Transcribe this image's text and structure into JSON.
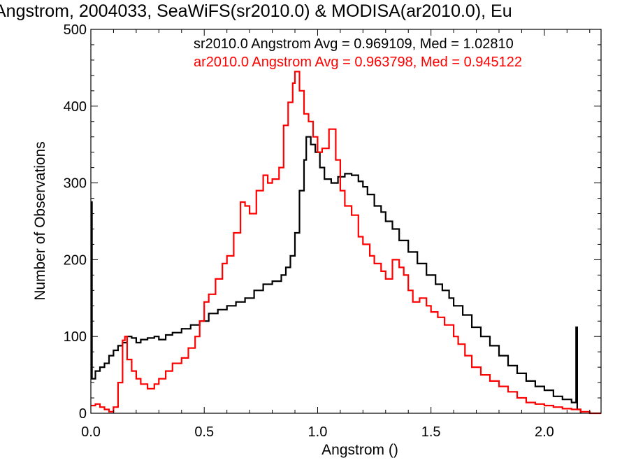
{
  "chart_data": {
    "type": "line",
    "title": "Angstrom, 2004033, SeaWiFS(sr2010.0) & MODISA(ar2010.0), Eu",
    "xlabel": "Angstrom ()",
    "ylabel": "Number of Observations",
    "xlim": [
      0,
      2.25
    ],
    "ylim": [
      0,
      500
    ],
    "x_ticks": [
      "0.0",
      "0.5",
      "1.0",
      "1.5",
      "2.0"
    ],
    "y_ticks": [
      "0",
      "100",
      "200",
      "300",
      "400",
      "500"
    ],
    "grid": false,
    "annotations": [
      {
        "text": "sr2010.0 Angstrom Avg = 0.969109, Med = 1.02810",
        "color": "#000000"
      },
      {
        "text": "ar2010.0 Angstrom Avg = 0.963798, Med = 0.945122",
        "color": "#ff0000"
      }
    ],
    "series": [
      {
        "color": "#000000",
        "style": "step",
        "points": [
          [
            0,
            275
          ],
          [
            0.005,
            45
          ],
          [
            0.02,
            55
          ],
          [
            0.04,
            60
          ],
          [
            0.06,
            65
          ],
          [
            0.08,
            75
          ],
          [
            0.1,
            82
          ],
          [
            0.12,
            88
          ],
          [
            0.14,
            92
          ],
          [
            0.16,
            100
          ],
          [
            0.18,
            98
          ],
          [
            0.2,
            92
          ],
          [
            0.22,
            96
          ],
          [
            0.25,
            98
          ],
          [
            0.28,
            100
          ],
          [
            0.3,
            96
          ],
          [
            0.33,
            102
          ],
          [
            0.36,
            105
          ],
          [
            0.4,
            110
          ],
          [
            0.44,
            115
          ],
          [
            0.48,
            120
          ],
          [
            0.52,
            130
          ],
          [
            0.56,
            135
          ],
          [
            0.6,
            140
          ],
          [
            0.64,
            145
          ],
          [
            0.68,
            150
          ],
          [
            0.72,
            160
          ],
          [
            0.76,
            168
          ],
          [
            0.8,
            172
          ],
          [
            0.84,
            180
          ],
          [
            0.86,
            190
          ],
          [
            0.88,
            205
          ],
          [
            0.9,
            235
          ],
          [
            0.92,
            290
          ],
          [
            0.94,
            330
          ],
          [
            0.95,
            360
          ],
          [
            0.97,
            350
          ],
          [
            0.99,
            340
          ],
          [
            1.01,
            320
          ],
          [
            1.03,
            305
          ],
          [
            1.06,
            300
          ],
          [
            1.09,
            308
          ],
          [
            1.12,
            312
          ],
          [
            1.15,
            310
          ],
          [
            1.18,
            302
          ],
          [
            1.2,
            295
          ],
          [
            1.22,
            285
          ],
          [
            1.25,
            270
          ],
          [
            1.28,
            262
          ],
          [
            1.3,
            250
          ],
          [
            1.33,
            240
          ],
          [
            1.36,
            225
          ],
          [
            1.4,
            210
          ],
          [
            1.44,
            195
          ],
          [
            1.48,
            180
          ],
          [
            1.52,
            168
          ],
          [
            1.55,
            160
          ],
          [
            1.58,
            150
          ],
          [
            1.6,
            140
          ],
          [
            1.64,
            128
          ],
          [
            1.68,
            112
          ],
          [
            1.72,
            100
          ],
          [
            1.76,
            88
          ],
          [
            1.8,
            75
          ],
          [
            1.84,
            62
          ],
          [
            1.88,
            52
          ],
          [
            1.92,
            42
          ],
          [
            1.96,
            35
          ],
          [
            2.0,
            30
          ],
          [
            2.04,
            22
          ],
          [
            2.08,
            18
          ],
          [
            2.12,
            14
          ],
          [
            2.14,
            112
          ],
          [
            2.145,
            5
          ],
          [
            2.16,
            0
          ]
        ]
      },
      {
        "color": "#ff0000",
        "style": "step",
        "points": [
          [
            0,
            10
          ],
          [
            0.02,
            12
          ],
          [
            0.04,
            8
          ],
          [
            0.06,
            5
          ],
          [
            0.08,
            2
          ],
          [
            0.1,
            8
          ],
          [
            0.12,
            40
          ],
          [
            0.14,
            95
          ],
          [
            0.15,
            100
          ],
          [
            0.16,
            70
          ],
          [
            0.18,
            55
          ],
          [
            0.2,
            45
          ],
          [
            0.22,
            38
          ],
          [
            0.25,
            32
          ],
          [
            0.28,
            38
          ],
          [
            0.3,
            45
          ],
          [
            0.33,
            55
          ],
          [
            0.36,
            65
          ],
          [
            0.4,
            72
          ],
          [
            0.43,
            85
          ],
          [
            0.46,
            100
          ],
          [
            0.48,
            120
          ],
          [
            0.5,
            145
          ],
          [
            0.52,
            155
          ],
          [
            0.55,
            175
          ],
          [
            0.58,
            195
          ],
          [
            0.6,
            205
          ],
          [
            0.63,
            235
          ],
          [
            0.66,
            275
          ],
          [
            0.68,
            270
          ],
          [
            0.7,
            260
          ],
          [
            0.73,
            290
          ],
          [
            0.76,
            310
          ],
          [
            0.78,
            300
          ],
          [
            0.8,
            305
          ],
          [
            0.83,
            320
          ],
          [
            0.85,
            375
          ],
          [
            0.87,
            405
          ],
          [
            0.89,
            430
          ],
          [
            0.9,
            445
          ],
          [
            0.92,
            420
          ],
          [
            0.94,
            390
          ],
          [
            0.96,
            380
          ],
          [
            0.98,
            360
          ],
          [
            1.0,
            340
          ],
          [
            1.02,
            345
          ],
          [
            1.05,
            370
          ],
          [
            1.08,
            330
          ],
          [
            1.1,
            290
          ],
          [
            1.12,
            270
          ],
          [
            1.15,
            258
          ],
          [
            1.18,
            230
          ],
          [
            1.2,
            220
          ],
          [
            1.23,
            205
          ],
          [
            1.25,
            195
          ],
          [
            1.28,
            185
          ],
          [
            1.3,
            175
          ],
          [
            1.33,
            200
          ],
          [
            1.36,
            190
          ],
          [
            1.38,
            180
          ],
          [
            1.4,
            160
          ],
          [
            1.42,
            145
          ],
          [
            1.45,
            150
          ],
          [
            1.48,
            140
          ],
          [
            1.5,
            132
          ],
          [
            1.53,
            125
          ],
          [
            1.56,
            115
          ],
          [
            1.6,
            100
          ],
          [
            1.62,
            90
          ],
          [
            1.65,
            75
          ],
          [
            1.68,
            60
          ],
          [
            1.72,
            50
          ],
          [
            1.76,
            42
          ],
          [
            1.8,
            35
          ],
          [
            1.84,
            28
          ],
          [
            1.88,
            20
          ],
          [
            1.92,
            14
          ],
          [
            1.96,
            12
          ],
          [
            2.0,
            10
          ],
          [
            2.04,
            8
          ],
          [
            2.08,
            6
          ],
          [
            2.12,
            5
          ],
          [
            2.16,
            2
          ],
          [
            2.2,
            0
          ],
          [
            2.25,
            0
          ]
        ]
      }
    ]
  }
}
